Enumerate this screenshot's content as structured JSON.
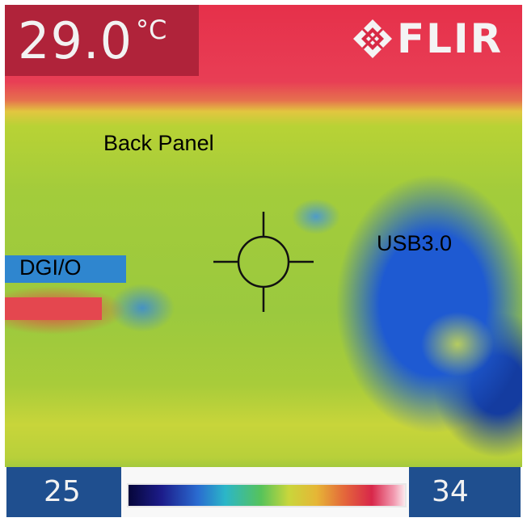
{
  "temperature": {
    "value": "29.0",
    "unit": "°C"
  },
  "brand": {
    "name": "FLIR",
    "icon": "flir-logo-icon"
  },
  "annotations": {
    "back_panel": "Back Panel",
    "usb": "USB3.0",
    "dgio": "DGI/O"
  },
  "scale": {
    "min": "25",
    "max": "34"
  },
  "colors": {
    "temp_box": "#b0233a",
    "range_box": "#1f4f8f"
  }
}
